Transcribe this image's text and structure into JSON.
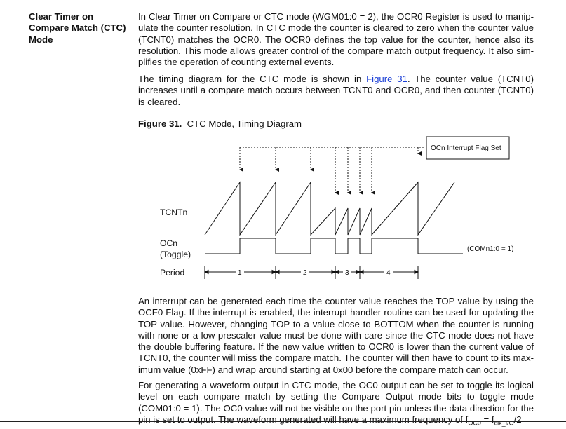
{
  "section": {
    "heading_lines": [
      "Clear Timer on",
      "Compare Match (CTC)",
      "Mode"
    ]
  },
  "paragraph1": [
    "In Clear Timer on Compare or CTC mode (WGM01:0 = 2), the OCR0 Register is used to manip-",
    "ulate the counter resolution. In CTC mode the counter is cleared to zero when the counter value",
    "(TCNT0) matches the OCR0. The OCR0 defines the top value for the counter, hence also its",
    "resolution. This mode allows greater control of the compare match output frequency. It also sim-",
    "plifies the operation of counting external events."
  ],
  "paragraph2": {
    "line1_before": "The timing diagram for the CTC mode is shown in ",
    "line1_link": "Figure 31",
    "line1_after": ". The counter value (TCNT0)",
    "line2": "increases until a compare match occurs between TCNT0 and OCR0, and then counter (TCNT0)",
    "line3": "is cleared."
  },
  "figure": {
    "number": "Figure 31.",
    "title": "CTC Mode, Timing Diagram",
    "flag_box_label": "OCn Interrupt Flag Set",
    "tcnt_label": "TCNTn",
    "ocn_label": "OCn",
    "toggle_label": "(Toggle)",
    "com_label": "(COMn1:0 = 1)",
    "period_label": "Period",
    "period_numbers": [
      "1",
      "2",
      "3",
      "4"
    ]
  },
  "paragraph3": [
    "An interrupt can be generated each time the counter value reaches the TOP value by using the",
    "OCF0 Flag. If the interrupt is enabled, the interrupt handler routine can be used for updating the",
    "TOP value. However, changing TOP to a value close to BOTTOM when the counter is running",
    "with none or a low prescaler value must be done with care since the CTC mode does not have",
    "the double buffering feature. If the new value written to OCR0 is lower than the current value of",
    "TCNT0, the counter will miss the compare match. The counter will then have to count to its max-",
    "imum value (0xFF) and wrap around starting at 0x00 before the compare match can occur."
  ],
  "paragraph4": [
    "For generating a waveform output in CTC mode, the OC0 output can be set to toggle its logical",
    "level on each compare match by setting the Compare Output mode bits to toggle mode",
    "(COM01:0 = 1). The OC0 value will not be visible on the port pin unless the data direction for the",
    "pin is set to output. The waveform generated will have a maximum frequency of f"
  ],
  "formula": {
    "f_oc_sub": "OC0",
    "eq": " = f",
    "clk_sub": "clk_I/O",
    "tail": "/2"
  }
}
